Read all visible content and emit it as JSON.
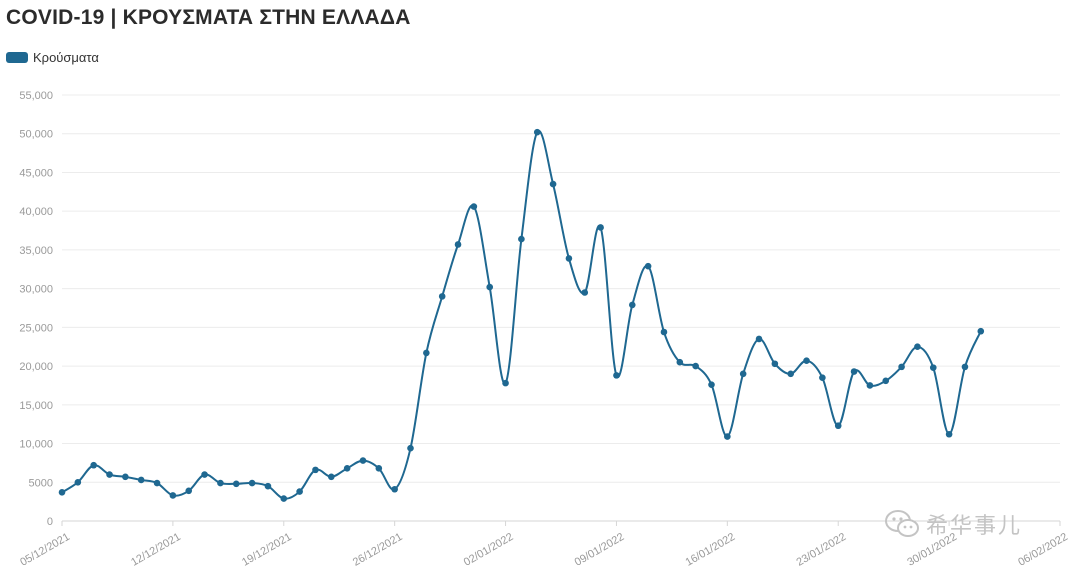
{
  "chart_data": {
    "type": "line",
    "title": "COVID-19 | ΚΡΟΥΣΜΑΤΑ ΣΤΗΝ ΕΛΛΑΔΑ",
    "legend": {
      "position": "top-left"
    },
    "series": [
      {
        "name": "Κρούσματα",
        "color": "#1f6891",
        "points": [
          [
            "2021-12-05",
            3700
          ],
          [
            "2021-12-06",
            5000
          ],
          [
            "2021-12-07",
            7200
          ],
          [
            "2021-12-08",
            6000
          ],
          [
            "2021-12-09",
            5700
          ],
          [
            "2021-12-10",
            5300
          ],
          [
            "2021-12-11",
            4900
          ],
          [
            "2021-12-12",
            3300
          ],
          [
            "2021-12-13",
            3900
          ],
          [
            "2021-12-14",
            6000
          ],
          [
            "2021-12-15",
            4900
          ],
          [
            "2021-12-16",
            4800
          ],
          [
            "2021-12-17",
            4900
          ],
          [
            "2021-12-18",
            4500
          ],
          [
            "2021-12-19",
            2900
          ],
          [
            "2021-12-20",
            3800
          ],
          [
            "2021-12-21",
            6600
          ],
          [
            "2021-12-22",
            5700
          ],
          [
            "2021-12-23",
            6800
          ],
          [
            "2021-12-24",
            7800
          ],
          [
            "2021-12-25",
            6800
          ],
          [
            "2021-12-26",
            4100
          ],
          [
            "2021-12-27",
            9400
          ],
          [
            "2021-12-28",
            21700
          ],
          [
            "2021-12-29",
            29000
          ],
          [
            "2021-12-30",
            35700
          ],
          [
            "2021-12-31",
            40600
          ],
          [
            "2022-01-01",
            30200
          ],
          [
            "2022-01-02",
            17800
          ],
          [
            "2022-01-03",
            36400
          ],
          [
            "2022-01-04",
            50200
          ],
          [
            "2022-01-05",
            43500
          ],
          [
            "2022-01-06",
            33900
          ],
          [
            "2022-01-07",
            29500
          ],
          [
            "2022-01-08",
            37900
          ],
          [
            "2022-01-09",
            18800
          ],
          [
            "2022-01-10",
            27900
          ],
          [
            "2022-01-11",
            32900
          ],
          [
            "2022-01-12",
            24400
          ],
          [
            "2022-01-13",
            20500
          ],
          [
            "2022-01-14",
            20000
          ],
          [
            "2022-01-15",
            17600
          ],
          [
            "2022-01-16",
            10900
          ],
          [
            "2022-01-17",
            19000
          ],
          [
            "2022-01-18",
            23500
          ],
          [
            "2022-01-19",
            20300
          ],
          [
            "2022-01-20",
            19000
          ],
          [
            "2022-01-21",
            20700
          ],
          [
            "2022-01-22",
            18500
          ],
          [
            "2022-01-23",
            12300
          ],
          [
            "2022-01-24",
            19300
          ],
          [
            "2022-01-25",
            17500
          ],
          [
            "2022-01-26",
            18100
          ],
          [
            "2022-01-27",
            19900
          ],
          [
            "2022-01-28",
            22500
          ],
          [
            "2022-01-29",
            19800
          ],
          [
            "2022-01-30",
            11200
          ],
          [
            "2022-01-31",
            19900
          ],
          [
            "2022-02-01",
            24500
          ]
        ]
      }
    ],
    "x_ticks": [
      [
        "2021-12-05",
        "05/12/2021"
      ],
      [
        "2021-12-12",
        "12/12/2021"
      ],
      [
        "2021-12-19",
        "19/12/2021"
      ],
      [
        "2021-12-26",
        "26/12/2021"
      ],
      [
        "2022-01-02",
        "02/01/2022"
      ],
      [
        "2022-01-09",
        "09/01/2022"
      ],
      [
        "2022-01-16",
        "16/01/2022"
      ],
      [
        "2022-01-23",
        "23/01/2022"
      ],
      [
        "2022-01-30",
        "30/01/2022"
      ],
      [
        "2022-02-06",
        "06/02/2022"
      ]
    ],
    "xlim": [
      "2021-12-05",
      "2022-02-06"
    ],
    "y_ticks": [
      0,
      5000,
      10000,
      15000,
      20000,
      25000,
      30000,
      35000,
      40000,
      45000,
      50000,
      55000
    ],
    "y_tick_labels": [
      "0",
      "5000",
      "10,000",
      "15,000",
      "20,000",
      "25,000",
      "30,000",
      "35,000",
      "40,000",
      "45,000",
      "50,000",
      "55,000"
    ],
    "ylim": [
      0,
      55000
    ],
    "grid": true
  },
  "watermark": {
    "text": "希华事儿",
    "icon": "wechat-icon"
  }
}
